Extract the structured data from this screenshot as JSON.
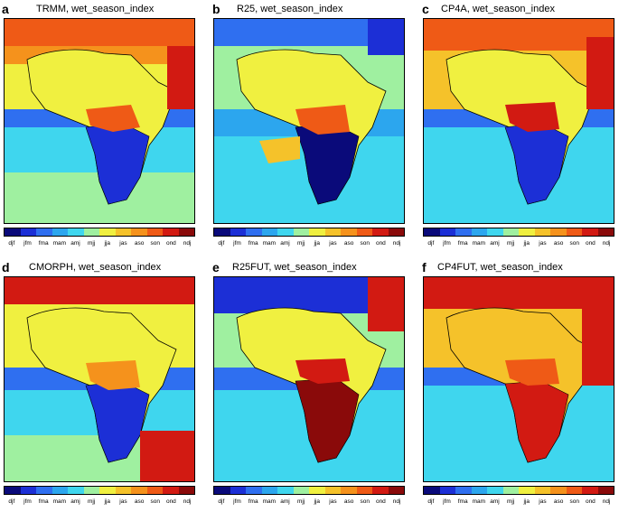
{
  "legend": {
    "labels": [
      "djf",
      "jfm",
      "fma",
      "mam",
      "amj",
      "mjj",
      "jja",
      "jas",
      "aso",
      "son",
      "ond",
      "ndj"
    ],
    "colors": [
      "#0a0a7a",
      "#1c2fd6",
      "#2f6ff0",
      "#2ca6ee",
      "#3fd6ee",
      "#9ff0a0",
      "#f0f040",
      "#f5c22a",
      "#f5921c",
      "#ef5a16",
      "#d21a12",
      "#8a0a0a"
    ]
  },
  "panels": [
    {
      "letter": "a",
      "title": "TRMM, wet_season_index"
    },
    {
      "letter": "b",
      "title": "R25, wet_season_index"
    },
    {
      "letter": "c",
      "title": "CP4A, wet_season_index"
    },
    {
      "letter": "d",
      "title": "CMORPH, wet_season_index"
    },
    {
      "letter": "e",
      "title": "R25FUT, wet_season_index"
    },
    {
      "letter": "f",
      "title": "CP4FUT, wet_season_index"
    }
  ]
}
